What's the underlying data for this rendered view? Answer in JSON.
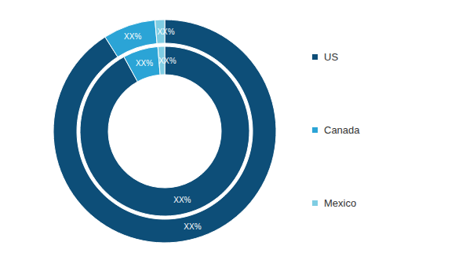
{
  "chart_data": {
    "type": "pie",
    "categories": [
      "US",
      "Canada",
      "Mexico"
    ],
    "colors": [
      "#0d4e78",
      "#2ba4d6",
      "#7fcde3"
    ],
    "series": [
      {
        "values": [
          92,
          6.7,
          1.3
        ],
        "value_labels": [
          "XX%",
          "XX%",
          "XX%"
        ]
      },
      {
        "values": [
          91,
          7.6,
          1.4
        ],
        "value_labels": [
          "XX%",
          "XX%",
          "XX%"
        ]
      }
    ],
    "data_labels": true,
    "legend": "right"
  }
}
